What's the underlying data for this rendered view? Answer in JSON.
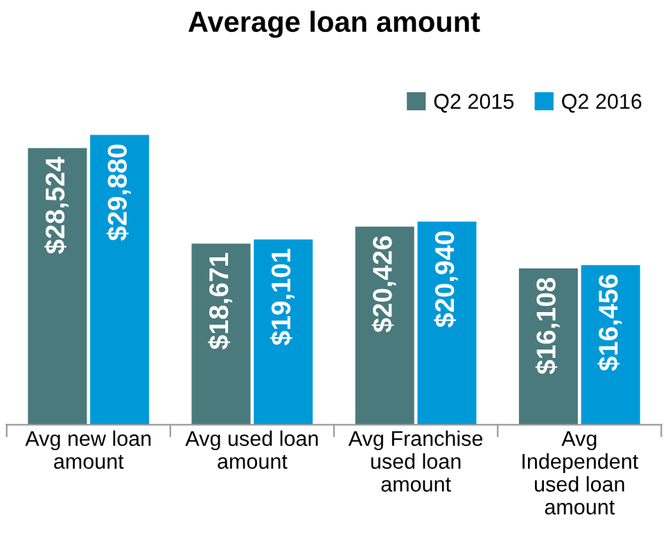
{
  "chart_data": {
    "type": "bar",
    "title": "Average loan amount",
    "categories": [
      "Avg new loan amount",
      "Avg used loan amount",
      "Avg Franchise used loan amount",
      "Avg Independent used loan amount"
    ],
    "series": [
      {
        "name": "Q2 2015",
        "color": "#4a7a7c",
        "values": [
          28524,
          18671,
          20426,
          16108
        ],
        "value_labels": [
          "$28,524",
          "$18,671",
          "$20,426",
          "$16,108"
        ]
      },
      {
        "name": "Q2 2016",
        "color": "#0099d8",
        "values": [
          29880,
          19101,
          20940,
          16456
        ],
        "value_labels": [
          "$29,880",
          "$19,101",
          "$20,940",
          "$16,456"
        ]
      }
    ],
    "legend": "top right",
    "grid": false
  }
}
